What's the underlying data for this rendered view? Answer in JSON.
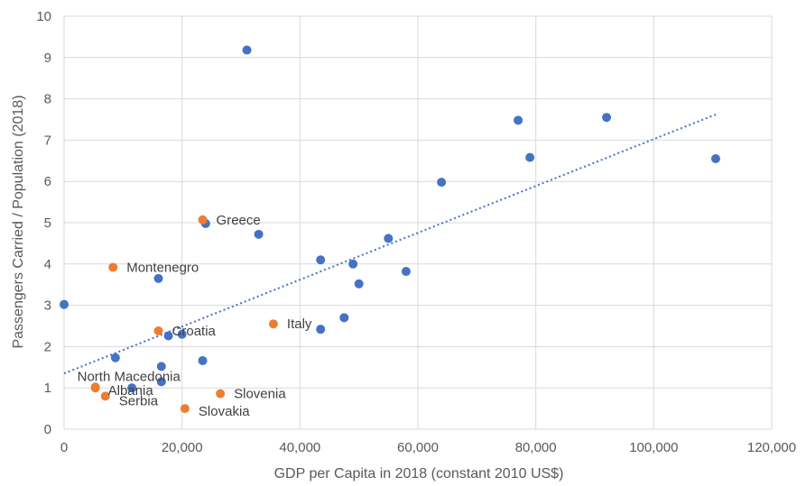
{
  "chart_data": {
    "type": "scatter",
    "title": "",
    "xlabel": "GDP per Capita in 2018 (constant 2010 US$)",
    "ylabel": "Passengers Carried / Population (2018)",
    "xlim": [
      0,
      120000
    ],
    "ylim": [
      0,
      10
    ],
    "xticks": [
      0,
      20000,
      40000,
      60000,
      80000,
      100000,
      120000
    ],
    "xtick_labels": [
      "0",
      "20,000",
      "40,000",
      "60,000",
      "80,000",
      "100,000",
      "120,000"
    ],
    "yticks": [
      0,
      1,
      2,
      3,
      4,
      5,
      6,
      7,
      8,
      9,
      10
    ],
    "ytick_labels": [
      "0",
      "1",
      "2",
      "3",
      "4",
      "5",
      "6",
      "7",
      "8",
      "9",
      "10"
    ],
    "grid": true,
    "legend": "none",
    "colors": {
      "other": "#4472C4",
      "highlighted": "#ED7D31",
      "trendline": "#4472C4"
    },
    "series": [
      {
        "points": [
          {
            "x": 0,
            "y": 3.02
          },
          {
            "x": 31000,
            "y": 9.18
          },
          {
            "x": 77000,
            "y": 7.48
          },
          {
            "x": 92000,
            "y": 7.55
          },
          {
            "x": 79000,
            "y": 6.58
          },
          {
            "x": 110500,
            "y": 6.55
          },
          {
            "x": 64000,
            "y": 5.98
          },
          {
            "x": 24000,
            "y": 4.98
          },
          {
            "x": 33000,
            "y": 4.72
          },
          {
            "x": 55000,
            "y": 4.62
          },
          {
            "x": 43500,
            "y": 4.1
          },
          {
            "x": 49000,
            "y": 4.0
          },
          {
            "x": 58000,
            "y": 3.82
          },
          {
            "x": 16000,
            "y": 3.65
          },
          {
            "x": 50000,
            "y": 3.52
          },
          {
            "x": 47500,
            "y": 2.7
          },
          {
            "x": 43500,
            "y": 2.42
          },
          {
            "x": 17700,
            "y": 2.26
          },
          {
            "x": 20000,
            "y": 2.3
          },
          {
            "x": 8700,
            "y": 1.73
          },
          {
            "x": 23500,
            "y": 1.66
          },
          {
            "x": 16500,
            "y": 1.52
          },
          {
            "x": 16500,
            "y": 1.15
          },
          {
            "x": 11500,
            "y": 1.0
          }
        ]
      },
      {
        "points": [
          {
            "x": 23500,
            "y": 5.07,
            "label": "Greece"
          },
          {
            "x": 8300,
            "y": 3.92,
            "label": "Montenegro"
          },
          {
            "x": 35500,
            "y": 2.55,
            "label": "Italy"
          },
          {
            "x": 16000,
            "y": 2.38,
            "label": "Croatia"
          },
          {
            "x": 5300,
            "y": 1.02,
            "label": "North Macedonia"
          },
          {
            "x": 5300,
            "y": 1.0,
            "label": "Albania"
          },
          {
            "x": 7000,
            "y": 0.8,
            "label": "Serbia"
          },
          {
            "x": 26500,
            "y": 0.86,
            "label": "Slovenia"
          },
          {
            "x": 20500,
            "y": 0.5,
            "label": "Slovakia"
          }
        ]
      }
    ],
    "trendline": {
      "type": "linear",
      "x": [
        0,
        110500
      ],
      "y": [
        1.35,
        7.62
      ]
    }
  }
}
